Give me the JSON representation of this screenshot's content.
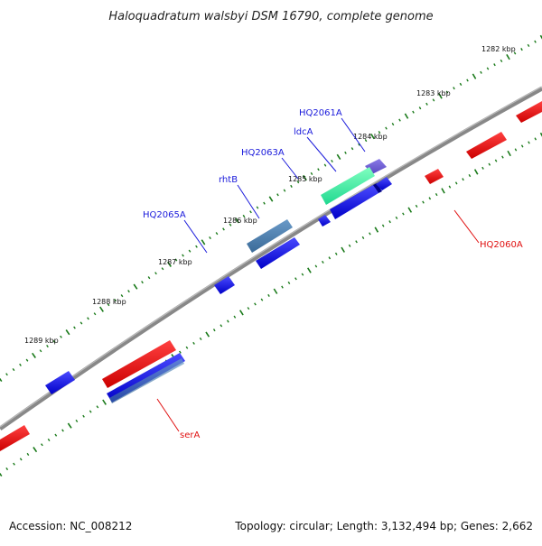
{
  "title": "Haloquadratum walsbyi DSM 16790, complete genome",
  "footer": {
    "accession": "Accession: NC_008212",
    "summary": "Topology: circular; Length: 3,132,494 bp; Genes: 2,662"
  },
  "colors": {
    "backbone": "#808080",
    "tick": "#1a7a1a",
    "forward_gene": "#1414e6",
    "reverse_gene": "#ee1111",
    "label_blue": "#1a1adb",
    "label_red": "#e01010"
  },
  "kbp_labels": [
    "1282 kbp",
    "1283 kbp",
    "1284 kbp",
    "1285 kbp",
    "1286 kbp",
    "1287 kbp",
    "1288 kbp",
    "1289 kbp"
  ],
  "gene_labels": {
    "HQ2061A": "HQ2061A",
    "ldcA": "ldcA",
    "HQ2063A": "HQ2063A",
    "rhtB": "rhtB",
    "HQ2065A": "HQ2065A",
    "HQ2060A": "HQ2060A",
    "serA": "serA"
  }
}
